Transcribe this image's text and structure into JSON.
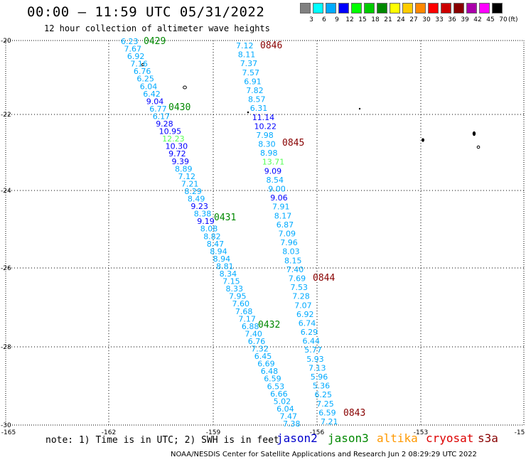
{
  "title": "00:00 – 11:59 UTC 05/31/2022",
  "subtitle": "12 hour collection of altimeter wave heights",
  "colorbar": {
    "unit": "(ft)",
    "bins": [
      {
        "label": "3",
        "color": "#808080"
      },
      {
        "label": "6",
        "color": "#00ffff"
      },
      {
        "label": "9",
        "color": "#00aaff"
      },
      {
        "label": "12",
        "color": "#0000ff"
      },
      {
        "label": "15",
        "color": "#00ff00"
      },
      {
        "label": "18",
        "color": "#00cc00"
      },
      {
        "label": "21",
        "color": "#008800"
      },
      {
        "label": "24",
        "color": "#ffff00"
      },
      {
        "label": "27",
        "color": "#ffcc00"
      },
      {
        "label": "30",
        "color": "#ff8800"
      },
      {
        "label": "33",
        "color": "#ff0000"
      },
      {
        "label": "36",
        "color": "#cc0000"
      },
      {
        "label": "39",
        "color": "#880000"
      },
      {
        "label": "42",
        "color": "#aa00aa"
      },
      {
        "label": "45",
        "color": "#ff00ff"
      },
      {
        "label": "70",
        "color": "#000000"
      }
    ]
  },
  "axes": {
    "lon_labels": [
      "-165",
      "-162",
      "-159",
      "-156",
      "-153",
      "-15"
    ],
    "lat_labels": [
      "-20",
      "-22",
      "-24",
      "-26",
      "-28",
      "-30"
    ]
  },
  "tracks": [
    {
      "passes": [
        {
          "time": "0429",
          "color": "#008800"
        },
        {
          "time": "0430",
          "color": "#008800"
        },
        {
          "time": "0431",
          "color": "#008800"
        },
        {
          "time": "0432",
          "color": "#008800"
        }
      ],
      "values": [
        {
          "t": "6.23",
          "c": "#00aaff"
        },
        {
          "t": "7.67",
          "c": "#00aaff"
        },
        {
          "t": "6.92",
          "c": "#00aaff"
        },
        {
          "t": "7.16",
          "c": "#00aaff"
        },
        {
          "t": "6.76",
          "c": "#00aaff"
        },
        {
          "t": "6.25",
          "c": "#00aaff"
        },
        {
          "t": "6.04",
          "c": "#00aaff"
        },
        {
          "t": "6.42",
          "c": "#00aaff"
        },
        {
          "t": "9.04",
          "c": "#0000ff"
        },
        {
          "t": "6.77",
          "c": "#00aaff"
        },
        {
          "t": "6.17",
          "c": "#00aaff"
        },
        {
          "t": "9.28",
          "c": "#0000ff"
        },
        {
          "t": "10.95",
          "c": "#0000ff"
        },
        {
          "t": "12.23",
          "c": "#55ff55"
        },
        {
          "t": "10.30",
          "c": "#0000ff"
        },
        {
          "t": "9.72",
          "c": "#0000ff"
        },
        {
          "t": "9.39",
          "c": "#0000ff"
        },
        {
          "t": "8.89",
          "c": "#00aaff"
        },
        {
          "t": "7.12",
          "c": "#00aaff"
        },
        {
          "t": "7.21",
          "c": "#00aaff"
        },
        {
          "t": "8.29",
          "c": "#00aaff"
        },
        {
          "t": "8.49",
          "c": "#00aaff"
        },
        {
          "t": "9.23",
          "c": "#0000ff"
        },
        {
          "t": "8.38",
          "c": "#00aaff"
        },
        {
          "t": "9.19",
          "c": "#0000ff"
        },
        {
          "t": "8.08",
          "c": "#00aaff"
        },
        {
          "t": "8.82",
          "c": "#00aaff"
        },
        {
          "t": "8.47",
          "c": "#00aaff"
        },
        {
          "t": "8.94",
          "c": "#00aaff"
        },
        {
          "t": "8.94",
          "c": "#00aaff"
        },
        {
          "t": "8.81",
          "c": "#00aaff"
        },
        {
          "t": "8.34",
          "c": "#00aaff"
        },
        {
          "t": "7.15",
          "c": "#00aaff"
        },
        {
          "t": "8.33",
          "c": "#00aaff"
        },
        {
          "t": "7.95",
          "c": "#00aaff"
        },
        {
          "t": "7.60",
          "c": "#00aaff"
        },
        {
          "t": "7.68",
          "c": "#00aaff"
        },
        {
          "t": "7.17",
          "c": "#00aaff"
        },
        {
          "t": "6.88",
          "c": "#00aaff"
        },
        {
          "t": "7.40",
          "c": "#00aaff"
        },
        {
          "t": "6.76",
          "c": "#00aaff"
        },
        {
          "t": "7.32",
          "c": "#00aaff"
        },
        {
          "t": "6.45",
          "c": "#00aaff"
        },
        {
          "t": "6.69",
          "c": "#00aaff"
        },
        {
          "t": "6.48",
          "c": "#00aaff"
        },
        {
          "t": "6.59",
          "c": "#00aaff"
        },
        {
          "t": "6.53",
          "c": "#00aaff"
        },
        {
          "t": "6.66",
          "c": "#00aaff"
        },
        {
          "t": "5.02",
          "c": "#00aaff"
        },
        {
          "t": "6.04",
          "c": "#00aaff"
        },
        {
          "t": "7.47",
          "c": "#00aaff"
        },
        {
          "t": "7.38",
          "c": "#00aaff"
        }
      ]
    },
    {
      "passes": [
        {
          "time": "0846",
          "color": "#880000"
        },
        {
          "time": "0845",
          "color": "#880000"
        },
        {
          "time": "0844",
          "color": "#880000"
        },
        {
          "time": "0843",
          "color": "#880000"
        }
      ],
      "values": [
        {
          "t": "7.12",
          "c": "#00aaff"
        },
        {
          "t": "8.11",
          "c": "#00aaff"
        },
        {
          "t": "7.37",
          "c": "#00aaff"
        },
        {
          "t": "7.57",
          "c": "#00aaff"
        },
        {
          "t": "6.91",
          "c": "#00aaff"
        },
        {
          "t": "7.82",
          "c": "#00aaff"
        },
        {
          "t": "8.57",
          "c": "#00aaff"
        },
        {
          "t": "6.31",
          "c": "#00aaff"
        },
        {
          "t": "11.14",
          "c": "#0000ff"
        },
        {
          "t": "10.22",
          "c": "#0000ff"
        },
        {
          "t": "7.98",
          "c": "#00aaff"
        },
        {
          "t": "8.30",
          "c": "#00aaff"
        },
        {
          "t": "8.98",
          "c": "#00aaff"
        },
        {
          "t": "13.71",
          "c": "#55ff55"
        },
        {
          "t": "9.09",
          "c": "#0000ff"
        },
        {
          "t": "8.54",
          "c": "#00aaff"
        },
        {
          "t": "9.00",
          "c": "#00aaff"
        },
        {
          "t": "9.06",
          "c": "#0000ff"
        },
        {
          "t": "7.91",
          "c": "#00aaff"
        },
        {
          "t": "8.17",
          "c": "#00aaff"
        },
        {
          "t": "6.87",
          "c": "#00aaff"
        },
        {
          "t": "7.09",
          "c": "#00aaff"
        },
        {
          "t": "7.96",
          "c": "#00aaff"
        },
        {
          "t": "8.03",
          "c": "#00aaff"
        },
        {
          "t": "8.15",
          "c": "#00aaff"
        },
        {
          "t": "7.40",
          "c": "#00aaff"
        },
        {
          "t": "7.69",
          "c": "#00aaff"
        },
        {
          "t": "7.53",
          "c": "#00aaff"
        },
        {
          "t": "7.28",
          "c": "#00aaff"
        },
        {
          "t": "7.07",
          "c": "#00aaff"
        },
        {
          "t": "6.92",
          "c": "#00aaff"
        },
        {
          "t": "6.74",
          "c": "#00aaff"
        },
        {
          "t": "6.29",
          "c": "#00aaff"
        },
        {
          "t": "6.44",
          "c": "#00aaff"
        },
        {
          "t": "5.77",
          "c": "#00aaff"
        },
        {
          "t": "5.93",
          "c": "#00aaff"
        },
        {
          "t": "7.13",
          "c": "#00aaff"
        },
        {
          "t": "5.96",
          "c": "#00aaff"
        },
        {
          "t": "5.36",
          "c": "#00aaff"
        },
        {
          "t": "6.25",
          "c": "#00aaff"
        },
        {
          "t": "7.25",
          "c": "#00aaff"
        },
        {
          "t": "6.59",
          "c": "#00aaff"
        },
        {
          "t": "7.21",
          "c": "#00aaff"
        }
      ]
    }
  ],
  "note": "note: 1) Time is in UTC; 2) SWH is in feet",
  "satellites": [
    {
      "name": "jason2",
      "color": "#0000cc"
    },
    {
      "name": "jason3",
      "color": "#008800"
    },
    {
      "name": "altika",
      "color": "#ff9900"
    },
    {
      "name": "cryosat",
      "color": "#dd0000"
    },
    {
      "name": "s3a",
      "color": "#880000"
    }
  ],
  "credit": "NOAA/NESDIS Center for Satellite Applications and Research   Jun  2 08:29:29 UTC 2022"
}
